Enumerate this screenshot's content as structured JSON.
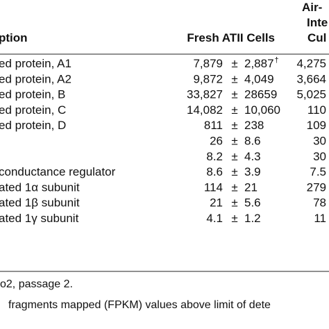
{
  "table": {
    "header": {
      "description": "ption",
      "fresh": "Fresh ATII Cells",
      "other": [
        "Air-",
        "Inte",
        "Cul"
      ]
    },
    "separator": "±",
    "rows": [
      {
        "description": "ed protein, A1",
        "mean": "7,879",
        "sd": "2,887",
        "note": "†",
        "other": "4,275"
      },
      {
        "description": "ed protein, A2",
        "mean": "9,872",
        "sd": "4,049",
        "other": "3,664"
      },
      {
        "description": "ed protein, B",
        "mean": "33,827",
        "sd": "28659",
        "other": "5,025"
      },
      {
        "description": "ed protein, C",
        "mean": "14,082",
        "sd": "10,060",
        "other": "110"
      },
      {
        "description": "ed protein, D",
        "mean": "811",
        "sd": "238",
        "other": "109"
      },
      {
        "mean": "26",
        "sd": "8.6",
        "other": "30"
      },
      {
        "mean": "8.2",
        "sd": "4.3",
        "other": "30"
      },
      {
        "description": "conductance regulator",
        "mean": "8.6",
        "sd": "3.9",
        "other": "7.5"
      },
      {
        "description": "ated 1α subunit",
        "mean": "114",
        "sd": "21",
        "other": "279"
      },
      {
        "description": "ated 1β subunit",
        "mean": "21",
        "sd": "5.6",
        "other": "78"
      },
      {
        "description": "ated 1γ subunit",
        "mean": "4.1",
        "sd": "1.2",
        "other": "11"
      }
    ],
    "footnotes": [
      "o2, passage 2.",
      "fragments mapped (FPKM) values above limit of dete"
    ]
  }
}
